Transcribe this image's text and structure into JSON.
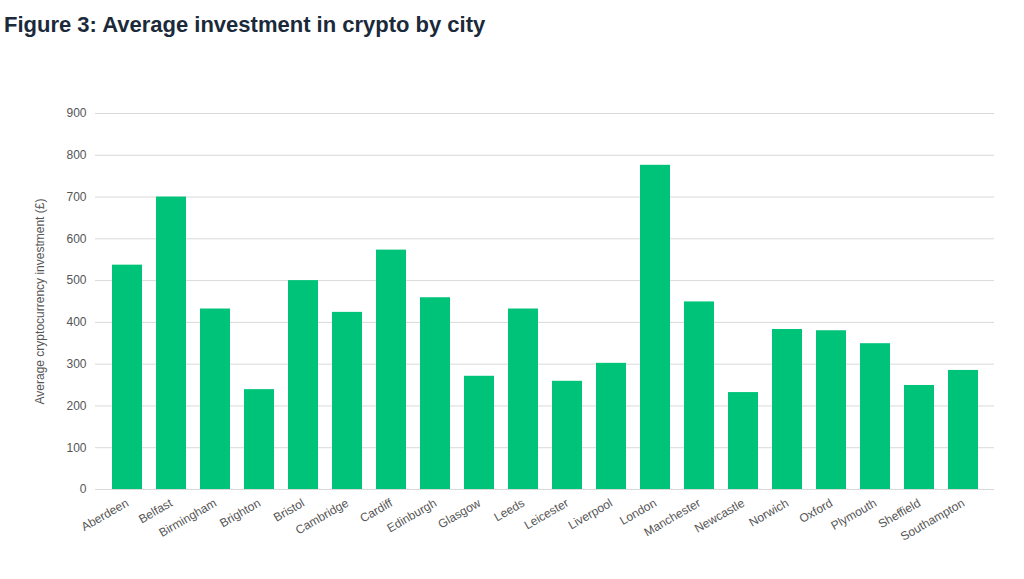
{
  "chart_data": {
    "type": "bar",
    "title": "Figure 3: Average investment in crypto by city",
    "y_label": "Average cryptocurrency investment (£)",
    "categories": [
      "Aberdeen",
      "Belfast",
      "Birmingham",
      "Brighton",
      "Bristol",
      "Cambridge",
      "Cardiff",
      "Edinburgh",
      "Glasgow",
      "Leeds",
      "Leicester",
      "Liverpool",
      "London",
      "Manchester",
      "Newcastle",
      "Norwich",
      "Oxford",
      "Plymouth",
      "Sheffield",
      "Southampton"
    ],
    "values": [
      537,
      700,
      432,
      239,
      500,
      424,
      573,
      459,
      271,
      432,
      259,
      302,
      776,
      449,
      232,
      383,
      380,
      349,
      249,
      285
    ],
    "color": "#00c37a",
    "ylim": [
      0,
      900
    ],
    "yticks": [
      0,
      100,
      200,
      300,
      400,
      500,
      600,
      700,
      800,
      900
    ],
    "grid": true
  }
}
